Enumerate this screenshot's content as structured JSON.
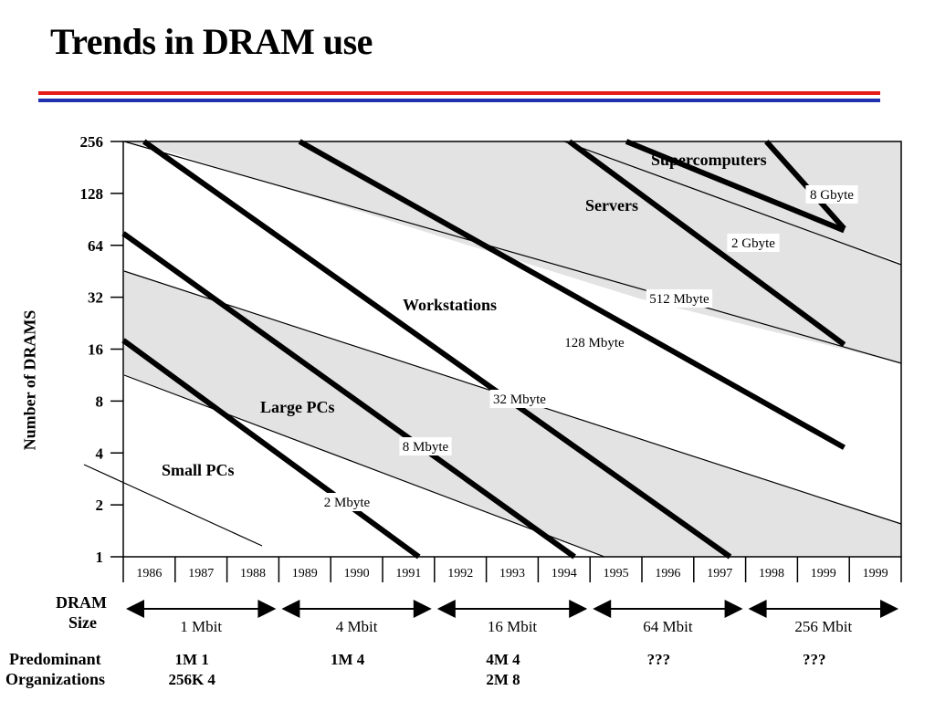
{
  "slide": {
    "title": "Trends in DRAM use",
    "accent_colors": {
      "red": "#e41b17",
      "blue": "#1f2fae"
    }
  },
  "chart_data": {
    "type": "line",
    "ylabel": "Number of DRAMS",
    "y_scale": "log2",
    "y_ticks": [
      "256",
      "128",
      "64",
      "32",
      "16",
      "8",
      "4",
      "2",
      "1"
    ],
    "x_ticks": [
      "1986",
      "1987",
      "1988",
      "1989",
      "1990",
      "1991",
      "1992",
      "1993",
      "1994",
      "1995",
      "1996",
      "1997",
      "1998",
      "1999",
      "1999"
    ],
    "memory_lines": [
      {
        "label": "2 Mbyte",
        "x": [
          1986,
          1991.7
        ],
        "y": [
          18,
          1
        ]
      },
      {
        "label": "8 Mbyte",
        "x": [
          1986,
          1994.7
        ],
        "y": [
          75,
          1
        ]
      },
      {
        "label": "32 Mbyte",
        "x": [
          1986.4,
          1997.7
        ],
        "y": [
          256,
          1
        ]
      },
      {
        "label": "128 Mbyte",
        "x": [
          1989.4,
          1999.9
        ],
        "y": [
          256,
          4.3
        ]
      },
      {
        "label": "512 Mbyte",
        "x": [
          1994.6,
          1999.9
        ],
        "y": [
          256,
          17
        ]
      },
      {
        "label": "2 Gbyte",
        "x": [
          1995.7,
          1999.9
        ],
        "y": [
          256,
          78
        ]
      },
      {
        "label": "8 Gbyte",
        "x": [
          1998.4,
          1999.9
        ],
        "y": [
          256,
          80
        ]
      }
    ],
    "segments": [
      {
        "label": "Small PCs",
        "y_lower_start": 1,
        "y_upper_start": 11
      },
      {
        "label": "Large PCs",
        "y_lower_start": 11,
        "y_upper_start": 46
      },
      {
        "label": "Workstations",
        "y_lower_start": 46,
        "y_upper_start": 256
      },
      {
        "label": "Servers",
        "y_lower_start": 256,
        "y_upper_start": 256
      },
      {
        "label": "Supercomputers",
        "y_lower_start": 256,
        "y_upper_start": 256
      }
    ],
    "dram_size_label": [
      "DRAM",
      "Size"
    ],
    "dram_sizes": [
      "1 Mbit",
      "4 Mbit",
      "16 Mbit",
      "64 Mbit",
      "256 Mbit"
    ],
    "organizations_label": [
      "Predominant",
      "Organizations"
    ],
    "organizations": [
      {
        "line1": "1M    1",
        "line2": "256K    4"
      },
      {
        "line1": "1M    4",
        "line2": ""
      },
      {
        "line1": "4M    4",
        "line2": "2M    8"
      },
      {
        "line1": "???",
        "line2": ""
      },
      {
        "line1": "???",
        "line2": ""
      }
    ]
  }
}
